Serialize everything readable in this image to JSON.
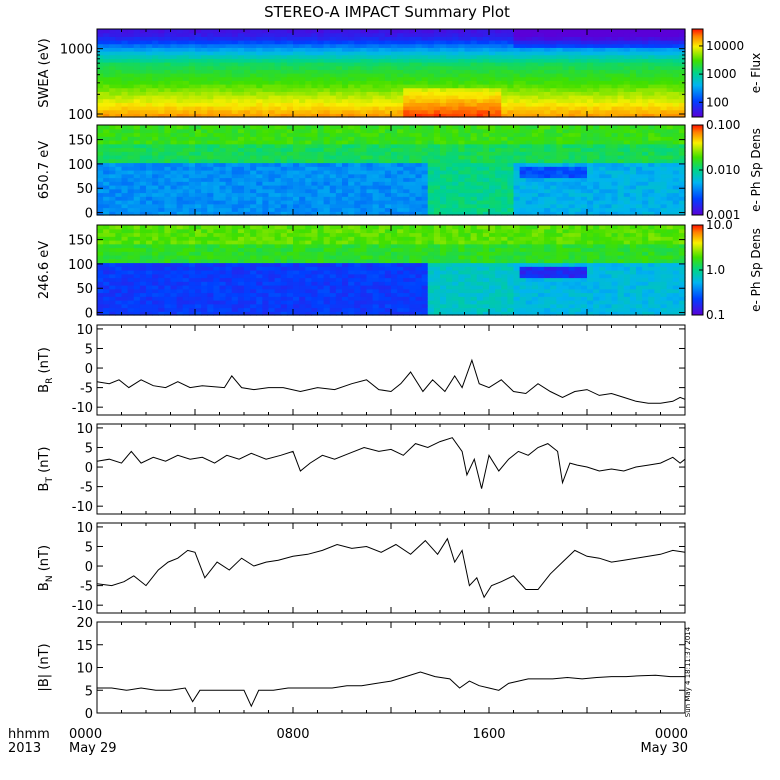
{
  "figure": {
    "title": "STEREO-A IMPACT Summary Plot",
    "timestamp": "Sun May  4 18:11:37 2014",
    "time_axis": {
      "prefix_line1": "hhmm",
      "prefix_line2": "2013",
      "ticks": [
        {
          "hours": 0,
          "line1": "0000",
          "line2": "May 29"
        },
        {
          "hours": 8,
          "line1": "0800",
          "line2": ""
        },
        {
          "hours": 16,
          "line1": "1600",
          "line2": ""
        },
        {
          "hours": 24,
          "line1": "0000",
          "line2": "May 30"
        }
      ],
      "range_hours": [
        0,
        24
      ]
    }
  },
  "chart_data": [
    {
      "type": "heatmap",
      "ylabel": "SWEA (eV)",
      "yscale": "log",
      "ylim": [
        90,
        2000
      ],
      "yticks": [
        {
          "v": 100,
          "label": "100"
        },
        {
          "v": 1000,
          "label": "1000"
        }
      ],
      "colorbar_label": "e- Flux",
      "colorbar_scale": "log",
      "colorbar_range": [
        30,
        40000
      ],
      "colorbar_ticks": [
        {
          "v": 100,
          "label": "100"
        },
        {
          "v": 1000,
          "label": "1000"
        },
        {
          "v": 10000,
          "label": "10000"
        }
      ],
      "description_profile_by_energy": [
        [
          90,
          20000
        ],
        [
          150,
          9000
        ],
        [
          300,
          3000
        ],
        [
          600,
          1500
        ],
        [
          1000,
          300
        ],
        [
          1500,
          60
        ],
        [
          2000,
          40
        ]
      ],
      "enhanced_flux_hours": [
        12.5,
        16.5
      ]
    },
    {
      "type": "heatmap",
      "ylabel": "650.7 eV",
      "ylim": [
        -5,
        180
      ],
      "yticks": [
        {
          "v": 0,
          "label": "0"
        },
        {
          "v": 50,
          "label": "50"
        },
        {
          "v": 100,
          "label": "100"
        },
        {
          "v": 150,
          "label": "150"
        }
      ],
      "colorbar_label": "e- Ph Sp Dens",
      "colorbar_scale": "log",
      "colorbar_range": [
        0.001,
        0.1
      ],
      "colorbar_ticks": [
        {
          "v": 0.001,
          "label": "0.001"
        },
        {
          "v": 0.01,
          "label": "0.010"
        },
        {
          "v": 0.1,
          "label": "0.100"
        }
      ]
    },
    {
      "type": "heatmap",
      "ylabel": "246.6 eV",
      "ylim": [
        -5,
        180
      ],
      "yticks": [
        {
          "v": 0,
          "label": "0"
        },
        {
          "v": 50,
          "label": "50"
        },
        {
          "v": 100,
          "label": "100"
        },
        {
          "v": 150,
          "label": "150"
        }
      ],
      "colorbar_label": "e- Ph Sp Dens",
      "colorbar_scale": "log",
      "colorbar_range": [
        0.1,
        10
      ],
      "colorbar_ticks": [
        {
          "v": 0.1,
          "label": "0.1"
        },
        {
          "v": 1,
          "label": "1.0"
        },
        {
          "v": 10,
          "label": "10.0"
        }
      ]
    },
    {
      "type": "line",
      "ylabel": "B",
      "ylabel_sub": "R",
      "ylabel_unit": " (nT)",
      "ylim": [
        -12,
        11
      ],
      "yticks": [
        -10,
        -5,
        0,
        5,
        10
      ],
      "x_hours": [
        0,
        0.5,
        0.9,
        1.3,
        1.8,
        2.3,
        2.8,
        3.3,
        3.8,
        4.3,
        5.2,
        5.5,
        5.9,
        6.4,
        7.0,
        7.6,
        8.3,
        9.0,
        9.7,
        10.4,
        11.0,
        11.5,
        12.0,
        12.4,
        12.8,
        13.3,
        13.7,
        14.2,
        14.6,
        14.9,
        15.3,
        15.6,
        16.0,
        16.5,
        17.0,
        17.5,
        18.0,
        18.5,
        19.0,
        19.5,
        20.0,
        20.5,
        21.0,
        21.5,
        22.0,
        22.5,
        23.0,
        23.5,
        23.8,
        24.0
      ],
      "y": [
        -3.5,
        -4,
        -3,
        -5,
        -3,
        -4.5,
        -5,
        -3.5,
        -5,
        -4.5,
        -5,
        -2,
        -5,
        -5.5,
        -5,
        -5,
        -6,
        -5,
        -5.5,
        -4,
        -3,
        -5.5,
        -6,
        -4,
        -1,
        -6,
        -3,
        -6,
        -2,
        -5,
        2,
        -4,
        -5,
        -3,
        -6,
        -6.5,
        -4,
        -6,
        -7.5,
        -6,
        -5.5,
        -7,
        -6.5,
        -7.5,
        -8.5,
        -9,
        -9,
        -8.5,
        -7.5,
        -8
      ],
      "series": [
        {
          "name": ""
        }
      ]
    },
    {
      "type": "line",
      "ylabel": "B",
      "ylabel_sub": "T",
      "ylabel_unit": " (nT)",
      "ylim": [
        -12,
        11
      ],
      "yticks": [
        -10,
        -5,
        0,
        5,
        10
      ],
      "x_hours": [
        0,
        0.5,
        1.0,
        1.4,
        1.8,
        2.3,
        2.8,
        3.3,
        3.8,
        4.3,
        4.8,
        5.3,
        5.8,
        6.3,
        6.9,
        7.5,
        8.0,
        8.3,
        8.7,
        9.2,
        9.7,
        10.3,
        10.9,
        11.5,
        12.0,
        12.5,
        13.0,
        13.5,
        14.0,
        14.5,
        14.9,
        15.1,
        15.4,
        15.7,
        16.0,
        16.4,
        16.8,
        17.2,
        17.6,
        18.0,
        18.4,
        18.8,
        19.0,
        19.3,
        19.6,
        20.0,
        20.5,
        21.0,
        21.5,
        22.0,
        22.5,
        23.0,
        23.5,
        23.8,
        24.0
      ],
      "y": [
        1.5,
        2,
        1,
        4,
        1,
        2.5,
        1.5,
        3,
        2,
        2.5,
        1,
        3,
        2,
        3.5,
        2,
        3,
        4,
        -1,
        1,
        3,
        2,
        3.5,
        5,
        4,
        4.5,
        3,
        6,
        5,
        6.5,
        7.5,
        4,
        -2,
        2,
        -5.5,
        3,
        -1,
        2,
        4,
        3,
        5,
        6,
        4,
        -4,
        1,
        0.5,
        0,
        -1,
        -0.5,
        -1,
        0,
        0.5,
        1,
        2.5,
        1,
        2
      ],
      "series": [
        {
          "name": ""
        }
      ]
    },
    {
      "type": "line",
      "ylabel": "B",
      "ylabel_sub": "N",
      "ylabel_unit": " (nT)",
      "ylim": [
        -12,
        11
      ],
      "yticks": [
        -10,
        -5,
        0,
        5,
        10
      ],
      "x_hours": [
        0,
        0.6,
        1.1,
        1.5,
        2.0,
        2.5,
        2.9,
        3.3,
        3.7,
        4.0,
        4.4,
        4.9,
        5.4,
        5.9,
        6.4,
        6.9,
        7.4,
        8.0,
        8.6,
        9.2,
        9.8,
        10.4,
        11.0,
        11.6,
        12.2,
        12.8,
        13.4,
        13.9,
        14.3,
        14.6,
        14.9,
        15.2,
        15.5,
        15.8,
        16.1,
        16.5,
        17.0,
        17.5,
        18.0,
        18.5,
        19.0,
        19.5,
        20.0,
        20.5,
        21.0,
        21.5,
        22.0,
        22.5,
        23.0,
        23.5,
        24.0
      ],
      "y": [
        -4.5,
        -5,
        -4,
        -2.5,
        -5,
        -1,
        1,
        2,
        4,
        3.5,
        -3,
        1,
        -1,
        2,
        0,
        1,
        1.5,
        2.5,
        3,
        4,
        5.5,
        4.5,
        5,
        3.5,
        5.5,
        3,
        6.5,
        3,
        7,
        1,
        4,
        -5,
        -3,
        -8,
        -5,
        -4,
        -2.5,
        -6,
        -6,
        -2,
        1,
        4,
        2.5,
        2,
        1,
        1.5,
        2,
        2.5,
        3,
        4,
        3.5
      ],
      "series": [
        {
          "name": ""
        }
      ]
    },
    {
      "type": "line",
      "ylabel": "|B| (nT)",
      "ylim": [
        0,
        20
      ],
      "yticks": [
        0,
        5,
        10,
        15,
        20
      ],
      "x_hours": [
        0,
        0.6,
        1.2,
        1.8,
        2.4,
        3.0,
        3.6,
        3.9,
        4.2,
        4.8,
        5.4,
        6.0,
        6.3,
        6.6,
        7.2,
        7.8,
        8.4,
        9.0,
        9.6,
        10.2,
        10.8,
        11.4,
        12.0,
        12.6,
        13.2,
        13.8,
        14.4,
        14.8,
        15.2,
        15.6,
        16.0,
        16.4,
        16.8,
        17.2,
        17.6,
        18.0,
        18.6,
        19.2,
        19.8,
        20.4,
        21.0,
        21.6,
        22.2,
        22.8,
        23.4,
        24.0
      ],
      "y": [
        5.5,
        5.5,
        5,
        5.5,
        5,
        5,
        5.5,
        2.5,
        5,
        5,
        5,
        5,
        1.5,
        5,
        5,
        5.5,
        5.5,
        5.5,
        5.5,
        6,
        6,
        6.5,
        7,
        8,
        9,
        8,
        7.5,
        5.5,
        7,
        6,
        5.5,
        5,
        6.5,
        7,
        7.5,
        7.5,
        7.5,
        7.8,
        7.5,
        7.8,
        8,
        8,
        8.2,
        8.3,
        8,
        8
      ],
      "series": [
        {
          "name": ""
        }
      ]
    }
  ]
}
